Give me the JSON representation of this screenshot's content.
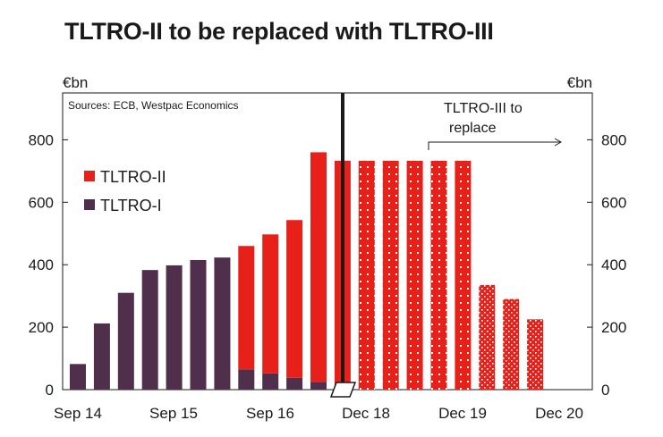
{
  "page": {
    "title": "TLTRO-II to be replaced with TLTRO-III"
  },
  "chart_data": {
    "type": "bar",
    "title": "TLTRO-II to be replaced with TLTRO-III",
    "ylabel_left": "€bn",
    "ylabel_right": "€bn",
    "source": "Sources: ECB, Westpac Economics",
    "ylim": [
      0,
      950
    ],
    "yticks": [
      0,
      200,
      400,
      600,
      800
    ],
    "xtick_labels": [
      "Sep 14",
      "Sep 15",
      "Sep 16",
      "Dec 18",
      "Dec 19",
      "Dec 20"
    ],
    "annotation": {
      "line1": "TLTRO-III to",
      "line2": "replace"
    },
    "colors": {
      "tltro1": "#4f2f4b",
      "tltro2": "#e8201a",
      "dots": "#ffffff",
      "axis": "#1a1a1a"
    },
    "series": [
      {
        "name": "TLTRO-II",
        "values": [
          0,
          0,
          0,
          0,
          0,
          0,
          0,
          395,
          445,
          505,
          735,
          733,
          733,
          733,
          733,
          733,
          733,
          335,
          290,
          225
        ]
      },
      {
        "name": "TLTRO-I",
        "values": [
          82,
          212,
          310,
          383,
          398,
          415,
          423,
          65,
          52,
          38,
          25,
          0,
          0,
          0,
          0,
          0,
          0,
          0,
          0,
          0
        ]
      }
    ],
    "bar_styles": [
      "solid",
      "solid",
      "solid",
      "solid",
      "solid",
      "solid",
      "solid",
      "solid",
      "solid",
      "solid",
      "solid",
      "solid",
      "grid",
      "grid",
      "grid",
      "grid",
      "grid",
      "dense",
      "dense",
      "dense"
    ]
  }
}
